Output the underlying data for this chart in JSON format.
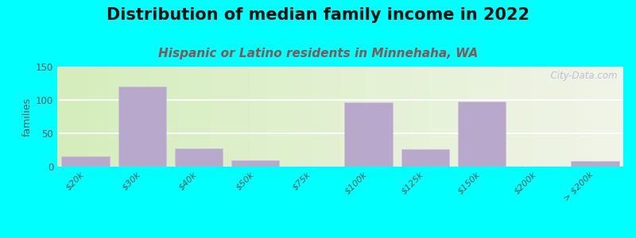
{
  "title": "Distribution of median family income in 2022",
  "subtitle": "Hispanic or Latino residents in Minnehaha, WA",
  "ylabel": "families",
  "background_outer": "#00FFFF",
  "bar_color": "#b8a8cc",
  "bar_edge_color": "#d0c0e0",
  "categories": [
    "$20k",
    "$30k",
    "$40k",
    "$50k",
    "$75k",
    "$100k",
    "$125k",
    "$150k",
    "$200k",
    "> $200k"
  ],
  "values": [
    15,
    120,
    27,
    10,
    0,
    96,
    26,
    98,
    0,
    8
  ],
  "ylim": [
    0,
    150
  ],
  "yticks": [
    0,
    50,
    100,
    150
  ],
  "title_fontsize": 15,
  "subtitle_fontsize": 11,
  "subtitle_color": "#885555",
  "watermark": "  City-Data.com",
  "grad_left": "#d4edbb",
  "grad_right": "#f0f4e8"
}
